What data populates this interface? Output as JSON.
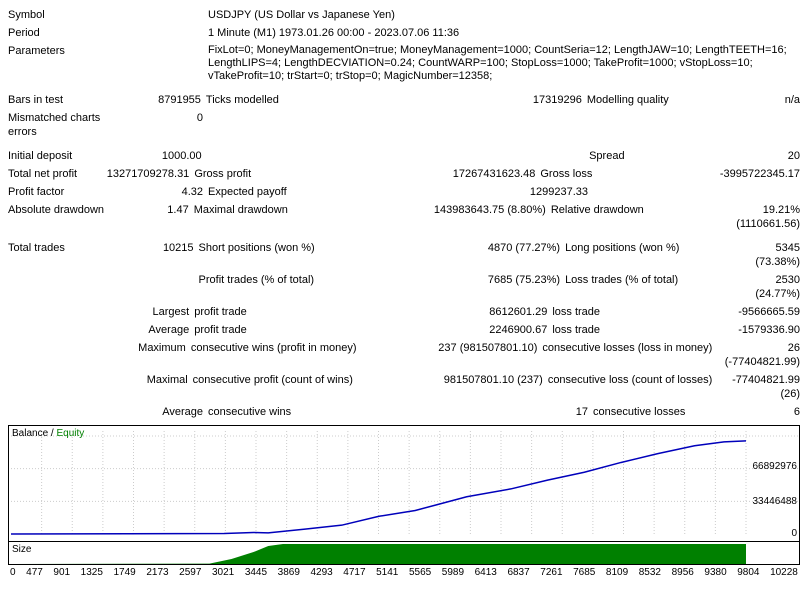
{
  "header": {
    "symbol_label": "Symbol",
    "symbol_value": "USDJPY (US Dollar vs Japanese Yen)",
    "period_label": "Period",
    "period_value": "1 Minute (M1) 1973.01.26 00:00 - 2023.07.06 11:36",
    "params_label": "Parameters",
    "params_value": "FixLot=0; MoneyManagementOn=true; MoneyManagement=1000; CountSeria=12; LengthJAW=10; LengthTEETH=16; LengthLIPS=4; LengthDECVIATION=0.24; CountWARP=100; StopLoss=1000; TakeProfit=1000; vStopLoss=10; vTakeProfit=10; trStart=0; trStop=0; MagicNumber=12358;"
  },
  "stats": {
    "bars_label": "Bars in test",
    "bars_val": "8791955",
    "ticks_label": "Ticks modelled",
    "ticks_val": "17319296",
    "modq_label": "Modelling quality",
    "modq_val": "n/a",
    "mism_label": "Mismatched charts errors",
    "mism_val": "0",
    "initdep_label": "Initial deposit",
    "initdep_val": "1000.00",
    "spread_label": "Spread",
    "spread_val": "20",
    "netprofit_label": "Total net profit",
    "netprofit_val": "13271709278.31",
    "gross_label": "Gross profit",
    "gross_val": "17267431623.48",
    "grossloss_label": "Gross loss",
    "grossloss_val": "-3995722345.17",
    "pf_label": "Profit factor",
    "pf_val": "4.32",
    "ep_label": "Expected payoff",
    "ep_val": "1299237.33",
    "absdd_label": "Absolute drawdown",
    "absdd_val": "1.47",
    "maxdd_label": "Maximal drawdown",
    "maxdd_val": "143983643.75 (8.80%)",
    "reldd_label": "Relative drawdown",
    "reldd_val": "19.21% (1110661.56)",
    "tt_label": "Total trades",
    "tt_val": "10215",
    "short_label": "Short positions (won %)",
    "short_val": "4870 (77.27%)",
    "long_label": "Long positions (won %)",
    "long_val": "5345 (73.38%)",
    "pt_label": "Profit trades (% of total)",
    "pt_val": "7685 (75.23%)",
    "lt_label": "Loss trades (% of total)",
    "lt_val": "2530 (24.77%)",
    "largest": "Largest",
    "lpt_label": "profit trade",
    "lpt_val": "8612601.29",
    "llt_label": "loss trade",
    "llt_val": "-9566665.59",
    "average": "Average",
    "apt_val": "2246900.67",
    "alt_val": "-1579336.90",
    "maximum": "Maximum",
    "mcw_label": "consecutive wins (profit in money)",
    "mcw_val": "237 (981507801.10)",
    "mcl_label": "consecutive losses (loss in money)",
    "mcl_val": "26 (-77404821.99)",
    "maximal": "Maximal",
    "mcp_label": "consecutive profit (count of wins)",
    "mcp_val": "981507801.10 (237)",
    "mcls_label": "consecutive loss (count of losses)",
    "mcls_val": "-77404821.99 (26)",
    "acw_label": "consecutive wins",
    "acw_val": "17",
    "acl_label": "consecutive losses",
    "acl_val": "6"
  },
  "chart": {
    "balance_label": "Balance",
    "equity_label": "Equity",
    "size_label": "Size",
    "yticks": [
      "66892976",
      "33446488",
      "0"
    ],
    "xticks": [
      "0",
      "477",
      "901",
      "1325",
      "1749",
      "2173",
      "2597",
      "3021",
      "3445",
      "3869",
      "4293",
      "4717",
      "5141",
      "5565",
      "5989",
      "6413",
      "6837",
      "7261",
      "7685",
      "8109",
      "8532",
      "8956",
      "9380",
      "9804",
      "10228"
    ],
    "balance_curve": [
      {
        "x": 0,
        "y": 0
      },
      {
        "x": 0.29,
        "y": 0.005
      },
      {
        "x": 0.33,
        "y": 0.015
      },
      {
        "x": 0.35,
        "y": 0.012
      },
      {
        "x": 0.4,
        "y": 0.05
      },
      {
        "x": 0.45,
        "y": 0.09
      },
      {
        "x": 0.5,
        "y": 0.18
      },
      {
        "x": 0.55,
        "y": 0.24
      },
      {
        "x": 0.58,
        "y": 0.3
      },
      {
        "x": 0.62,
        "y": 0.38
      },
      {
        "x": 0.68,
        "y": 0.46
      },
      {
        "x": 0.73,
        "y": 0.55
      },
      {
        "x": 0.78,
        "y": 0.63
      },
      {
        "x": 0.83,
        "y": 0.73
      },
      {
        "x": 0.88,
        "y": 0.82
      },
      {
        "x": 0.93,
        "y": 0.9
      },
      {
        "x": 0.97,
        "y": 0.94
      },
      {
        "x": 1.0,
        "y": 0.95
      }
    ],
    "size_curve": [
      {
        "x": 0,
        "y": 0
      },
      {
        "x": 0.27,
        "y": 0.02
      },
      {
        "x": 0.3,
        "y": 0.25
      },
      {
        "x": 0.33,
        "y": 0.6
      },
      {
        "x": 0.35,
        "y": 0.9
      },
      {
        "x": 0.37,
        "y": 1.0
      },
      {
        "x": 1.0,
        "y": 1.0
      }
    ],
    "colors": {
      "balance": "#0000bb",
      "equity": "#008000",
      "size_fill": "#008000",
      "grid": "#cccccc"
    }
  }
}
